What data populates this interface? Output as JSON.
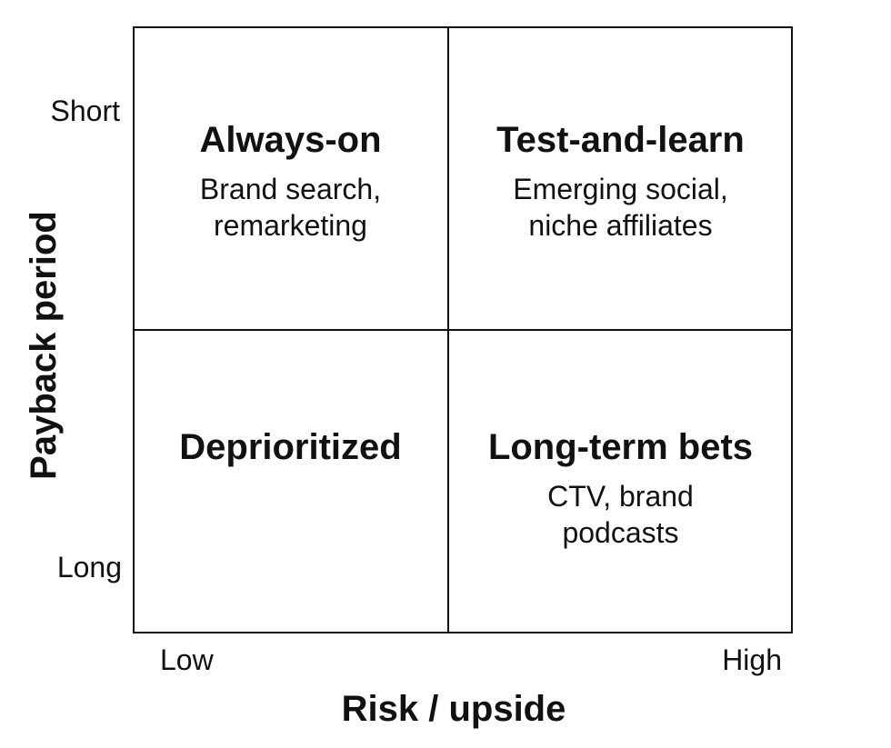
{
  "quadrants": {
    "top_left": {
      "title": "Always-on",
      "desc_line1": "Brand search,",
      "desc_line2": "remarketing"
    },
    "top_right": {
      "title": "Test-and-learn",
      "desc_line1": "Emerging social,",
      "desc_line2": "niche affiliates"
    },
    "bottom_left": {
      "title": "Deprioritized"
    },
    "bottom_right": {
      "title": "Long-term bets",
      "desc_line1": "CTV, brand",
      "desc_line2": "podcasts"
    }
  },
  "y_axis": {
    "label": "Payback period",
    "top_tick": "Short",
    "bottom_tick": "Long"
  },
  "x_axis": {
    "label": "Risk / upside",
    "left_tick": "Low",
    "right_tick": "High"
  },
  "colors": {
    "line": "#111111",
    "text": "#111111",
    "background": "#ffffff"
  }
}
